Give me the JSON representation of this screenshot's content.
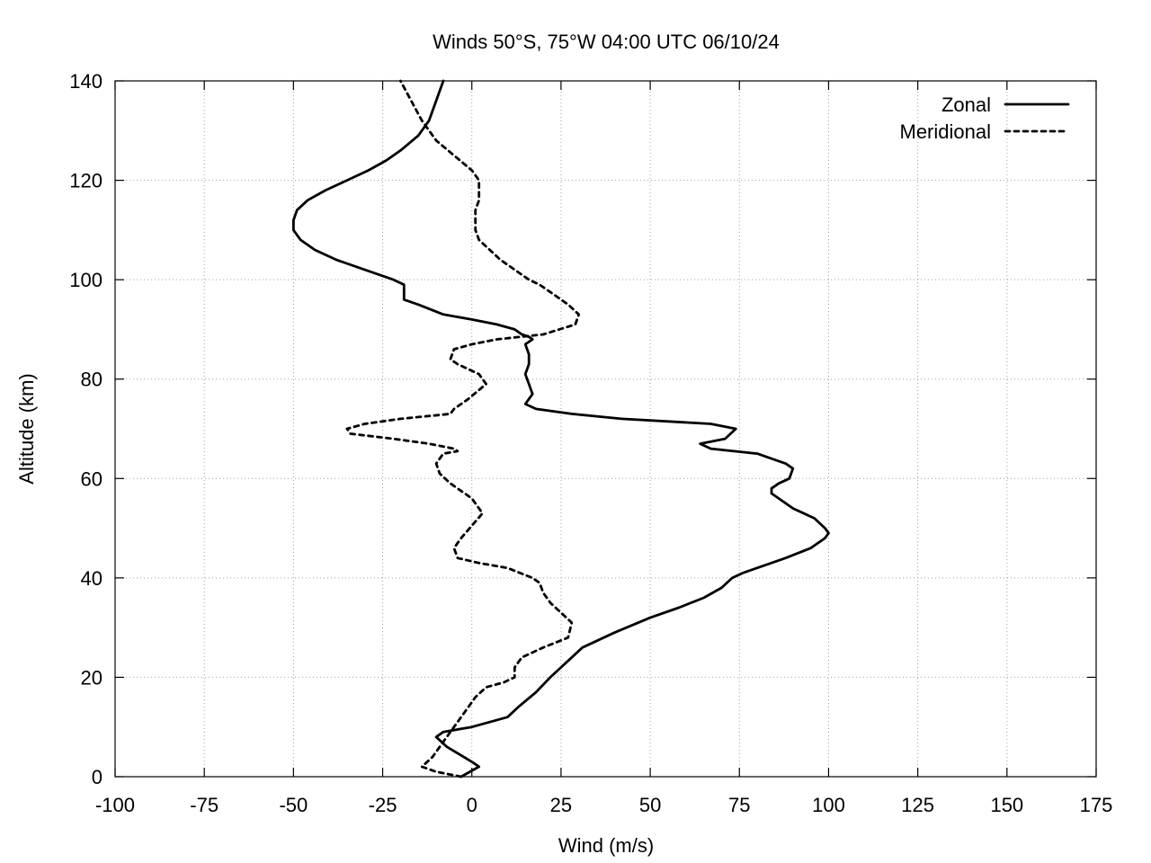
{
  "chart_data": {
    "type": "line",
    "title": "Winds 50°S, 75°W 04:00 UTC 06/10/24",
    "xlabel": "Wind (m/s)",
    "ylabel": "Altitude (km)",
    "xlim": [
      -100,
      175
    ],
    "ylim": [
      0,
      140
    ],
    "xticks": [
      -100,
      -75,
      -50,
      -25,
      0,
      25,
      50,
      75,
      100,
      125,
      150,
      175
    ],
    "yticks": [
      0,
      20,
      40,
      60,
      80,
      100,
      120,
      140
    ],
    "grid": true,
    "legend_position": "top-right",
    "series": [
      {
        "name": "Zonal",
        "style": "solid",
        "color": "#000000",
        "x": [
          -3,
          2,
          0,
          -7,
          -10,
          -8,
          0,
          5,
          10,
          13,
          18,
          22,
          25,
          31,
          40,
          50,
          58,
          65,
          70,
          73,
          76,
          88,
          95,
          99,
          100,
          99,
          96,
          90,
          86,
          84,
          84,
          86,
          89,
          90,
          88,
          80,
          67,
          64,
          71,
          74,
          67,
          42,
          28,
          18,
          15,
          17,
          16,
          15,
          16,
          16,
          15,
          17,
          16,
          14,
          12,
          7,
          0,
          -8,
          -15,
          -19,
          -19,
          -19,
          -22,
          -30,
          -38,
          -44,
          -48,
          -50,
          -50,
          -49,
          -46,
          -41,
          -35,
          -29,
          -24,
          -20,
          -15,
          -12,
          -8
        ],
        "y": [
          0,
          2,
          3,
          6,
          8,
          9,
          10,
          11,
          12,
          14,
          17,
          20,
          22,
          26,
          29,
          32,
          34,
          36,
          38,
          40,
          41,
          44,
          46,
          48,
          49,
          50,
          52,
          54,
          56,
          57,
          58,
          59,
          60,
          62,
          63,
          65,
          66,
          67,
          68,
          70,
          71,
          72,
          73,
          74,
          75,
          77,
          79,
          81,
          83,
          85,
          87,
          88,
          88.5,
          89,
          90,
          91,
          92,
          93,
          95,
          96,
          98,
          99,
          100,
          102,
          104,
          106,
          108,
          110,
          112,
          114,
          116,
          118,
          120,
          122,
          124,
          126,
          129,
          132,
          140
        ]
      },
      {
        "name": "Meridional",
        "style": "dashed",
        "color": "#000000",
        "x": [
          -3,
          -10,
          -14,
          -11,
          -9,
          -6,
          -3,
          -1,
          1,
          4,
          9,
          12,
          12,
          14,
          20,
          27,
          28,
          25,
          22,
          20,
          19,
          17,
          10,
          2,
          -4,
          -5,
          -3,
          3,
          0,
          -6,
          -9,
          -10,
          -8,
          -4,
          -5,
          -12,
          -22,
          -34,
          -35,
          -30,
          -20,
          -6,
          -5,
          -1,
          4,
          2,
          -4,
          -6,
          -5,
          0,
          7,
          20,
          29,
          30,
          27,
          23,
          19,
          16,
          8,
          2,
          1,
          1,
          1,
          2,
          2,
          0,
          -5,
          -10,
          -14,
          -20
        ],
        "y": [
          0,
          1,
          2,
          4,
          6,
          9,
          12,
          14,
          16,
          18,
          19,
          20,
          22,
          24,
          26,
          28,
          31,
          33,
          35,
          37,
          39,
          40,
          42,
          43,
          44,
          46,
          48,
          53,
          56,
          59,
          61,
          63,
          65,
          65.5,
          66,
          67,
          68,
          69,
          70,
          71,
          72,
          73,
          74,
          76,
          79,
          81,
          83,
          84,
          86,
          87,
          88,
          89,
          91,
          93,
          95,
          97,
          99,
          100,
          104,
          108,
          110,
          112,
          114,
          116,
          120,
          122,
          125,
          128,
          132,
          140
        ]
      }
    ]
  }
}
